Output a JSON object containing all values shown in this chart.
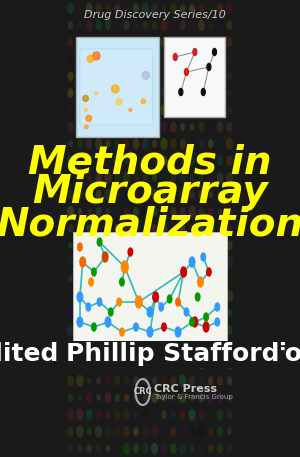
{
  "background_color": "#1a1a1a",
  "dot_grid_color_base": "#2a2a2a",
  "title_lines": [
    "Methods in",
    "Microarray",
    "Normalization"
  ],
  "title_color": "#ffff00",
  "title_fontsize": 28,
  "series_text": "Drug Discovery Series/10",
  "series_color": "#cccccc",
  "series_fontsize": 8,
  "edited_by_text": "Edited by",
  "author_text": "Phillip Stafford",
  "edited_color": "#ffffff",
  "author_color": "#ffffff",
  "edited_fontsize": 13,
  "author_fontsize": 18,
  "crc_text": "CRC Press",
  "crc_sub_text": "Taylor & Francis Group",
  "top_image1_color": "#c8e8f8",
  "top_image2_color": "#f8f8f8",
  "network_bg": "#f5f5f0"
}
